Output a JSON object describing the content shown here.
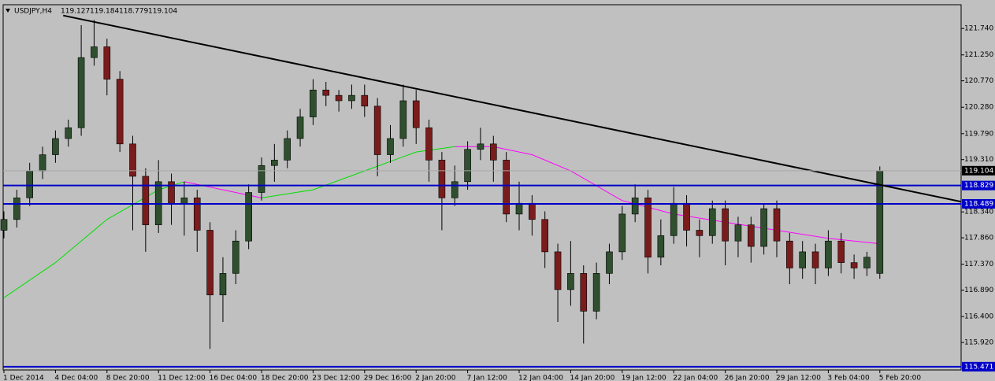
{
  "chart_data": {
    "type": "candlestick",
    "symbol": "USDJPY,H4",
    "ohlc": [
      119.127,
      119.184,
      118.779,
      119.104
    ],
    "categories": [
      "1 Dec 2014",
      null,
      null,
      null,
      "4 Dec 04:00",
      null,
      null,
      null,
      "8 Dec 20:00",
      null,
      null,
      null,
      "11 Dec 12:00",
      null,
      null,
      null,
      "16 Dec 04:00",
      null,
      null,
      null,
      "18 Dec 20:00",
      null,
      null,
      null,
      "23 Dec 12:00",
      null,
      null,
      null,
      "29 Dec 16:00",
      null,
      null,
      null,
      "2 Jan 20:00",
      null,
      null,
      null,
      "7 Jan 12:00",
      null,
      null,
      null,
      "12 Jan 04:00",
      null,
      null,
      null,
      "14 Jan 20:00",
      null,
      null,
      null,
      "19 Jan 12:00",
      null,
      null,
      null,
      "22 Jan 04:00",
      null,
      null,
      null,
      "26 Jan 20:00",
      null,
      null,
      null,
      "29 Jan 12:00",
      null,
      null,
      null,
      "3 Feb 04:00",
      null,
      null,
      null,
      "5 Feb 20:00"
    ],
    "open": [
      118.0,
      118.2,
      118.6,
      119.1,
      119.4,
      119.7,
      119.9,
      121.2,
      121.4,
      120.8,
      119.6,
      119.0,
      118.1,
      118.9,
      118.5,
      118.6,
      118.0,
      116.8,
      117.2,
      117.8,
      118.7,
      119.2,
      119.3,
      119.7,
      120.1,
      120.6,
      120.5,
      120.4,
      120.5,
      120.3,
      119.4,
      119.7,
      120.4,
      119.9,
      119.3,
      118.6,
      118.9,
      119.5,
      119.6,
      119.3,
      118.3,
      118.5,
      118.2,
      117.6,
      116.9,
      117.2,
      116.5,
      117.2,
      117.6,
      118.3,
      118.6,
      117.5,
      117.9,
      118.5,
      118.0,
      117.9,
      118.4,
      117.8,
      118.1,
      117.7,
      118.4,
      117.8,
      117.3,
      117.6,
      117.3,
      117.8,
      117.4,
      117.3,
      117.2
    ],
    "high": [
      118.35,
      118.75,
      119.25,
      119.55,
      119.85,
      120.05,
      121.8,
      121.9,
      121.55,
      120.95,
      119.75,
      119.15,
      119.3,
      119.05,
      118.9,
      118.75,
      118.15,
      117.5,
      118.0,
      118.85,
      119.35,
      119.6,
      119.85,
      120.25,
      120.8,
      120.75,
      120.6,
      120.7,
      120.7,
      120.45,
      119.95,
      120.7,
      120.6,
      120.05,
      119.45,
      119.2,
      119.65,
      119.9,
      119.75,
      119.45,
      118.9,
      118.65,
      118.35,
      117.75,
      117.8,
      117.35,
      117.4,
      117.75,
      118.45,
      118.85,
      118.75,
      118.2,
      118.8,
      118.65,
      118.2,
      118.55,
      118.55,
      118.25,
      118.25,
      118.5,
      118.55,
      117.95,
      117.8,
      117.75,
      118.0,
      117.95,
      117.55,
      117.6,
      119.184
    ],
    "low": [
      117.85,
      118.05,
      118.45,
      118.95,
      119.25,
      119.55,
      119.75,
      121.05,
      120.5,
      119.45,
      118.0,
      117.6,
      117.95,
      118.1,
      117.9,
      117.6,
      115.8,
      116.3,
      117.0,
      117.65,
      118.55,
      118.9,
      119.15,
      119.55,
      119.95,
      120.3,
      120.2,
      120.25,
      120.1,
      119.0,
      119.25,
      119.55,
      119.6,
      118.9,
      118.0,
      118.45,
      118.75,
      119.3,
      118.9,
      118.15,
      118.0,
      117.9,
      117.3,
      116.3,
      116.6,
      115.9,
      116.35,
      117.0,
      117.45,
      118.15,
      117.2,
      117.35,
      117.75,
      117.7,
      117.5,
      117.75,
      117.35,
      117.5,
      117.4,
      117.55,
      117.5,
      117.0,
      117.1,
      117.0,
      117.15,
      117.2,
      117.1,
      117.15,
      117.1
    ],
    "close": [
      118.2,
      118.6,
      119.1,
      119.4,
      119.7,
      119.9,
      121.2,
      121.4,
      120.8,
      119.6,
      119.0,
      118.1,
      118.9,
      118.5,
      118.6,
      118.0,
      116.8,
      117.2,
      117.8,
      118.7,
      119.2,
      119.3,
      119.7,
      120.1,
      120.6,
      120.5,
      120.4,
      120.5,
      120.3,
      119.4,
      119.7,
      120.4,
      119.9,
      119.3,
      118.6,
      118.9,
      119.5,
      119.6,
      119.3,
      118.3,
      118.5,
      118.2,
      117.6,
      116.9,
      117.2,
      116.5,
      117.2,
      117.6,
      118.3,
      118.6,
      117.5,
      117.9,
      118.5,
      118.0,
      117.9,
      118.4,
      117.8,
      118.1,
      117.7,
      118.4,
      117.8,
      117.3,
      117.6,
      117.3,
      117.8,
      117.4,
      117.3,
      117.5,
      119.104
    ],
    "up_color": "#2f4f2f",
    "down_color": "#7a1c1c",
    "ylim": [
      115.41,
      122.18
    ],
    "yticks": [
      {
        "value": 121.74,
        "label": "121.740"
      },
      {
        "value": 121.25,
        "label": "121.250"
      },
      {
        "value": 120.77,
        "label": "120.770"
      },
      {
        "value": 120.28,
        "label": "120.280"
      },
      {
        "value": 119.79,
        "label": "119.790"
      },
      {
        "value": 119.31,
        "label": "119.310"
      },
      {
        "value": 118.34,
        "label": "118.340"
      },
      {
        "value": 117.86,
        "label": "117.860"
      },
      {
        "value": 117.37,
        "label": "117.370"
      },
      {
        "value": 116.89,
        "label": "116.890"
      },
      {
        "value": 116.4,
        "label": "116.400"
      },
      {
        "value": 115.92,
        "label": "115.920"
      }
    ],
    "hlines": [
      {
        "value": 118.829,
        "label": "118.829"
      },
      {
        "value": 118.489,
        "label": "118.489"
      },
      {
        "value": 115.471,
        "label": "115.471"
      }
    ],
    "hline_color": "#0000c8",
    "trendline": {
      "x": [
        4.6,
        74.3
      ],
      "values": [
        121.98,
        118.53
      ],
      "color": "#000000"
    },
    "ma": [
      {
        "color": "#00e000",
        "x": [
          0,
          4,
          8,
          12,
          14
        ],
        "values": [
          116.75,
          117.4,
          118.2,
          118.75,
          118.9
        ]
      },
      {
        "color": "#ff00ff",
        "x": [
          14,
          17,
          20
        ],
        "values": [
          118.9,
          118.75,
          118.6
        ]
      },
      {
        "color": "#00e000",
        "x": [
          20,
          24,
          28,
          32,
          35
        ],
        "values": [
          118.6,
          118.75,
          119.1,
          119.45,
          119.55
        ]
      },
      {
        "color": "#ff00ff",
        "x": [
          35,
          38,
          41,
          44,
          48,
          52,
          56,
          60,
          64,
          68
        ],
        "values": [
          119.55,
          119.55,
          119.4,
          119.1,
          118.55,
          118.3,
          118.15,
          118.0,
          117.85,
          117.75
        ]
      }
    ]
  }
}
